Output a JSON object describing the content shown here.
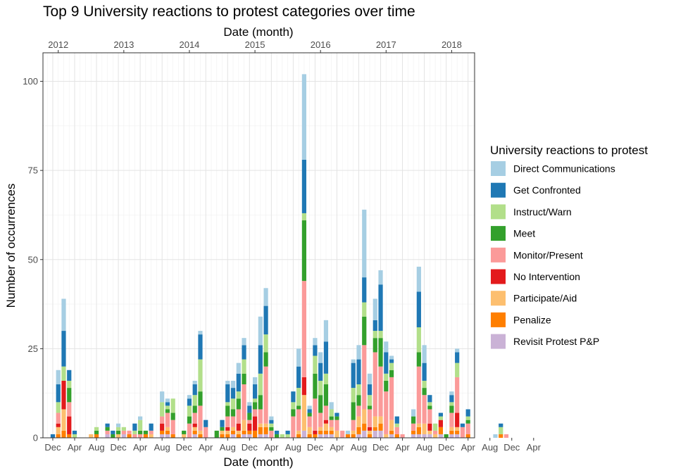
{
  "chart_data": {
    "type": "bar",
    "stacked": true,
    "title": "Top 9  University reactions to protest categories over time",
    "xlabel": "Date (month)",
    "xlabel_top": "Date (month)",
    "ylabel": "Number of occurrences",
    "ylim": [
      0,
      108
    ],
    "y_ticks": [
      0,
      25,
      50,
      75,
      100
    ],
    "x_ticks_bottom": [
      "Dec",
      "Apr",
      "Aug",
      "Dec",
      "Apr",
      "Aug",
      "Dec",
      "Apr",
      "Aug",
      "Dec",
      "Apr",
      "Aug",
      "Dec",
      "Apr",
      "Aug",
      "Dec",
      "Apr",
      "Aug",
      "Dec",
      "Apr",
      "Aug",
      "Dec",
      "Apr"
    ],
    "x_ticks_top": [
      "2012",
      "2013",
      "2014",
      "2015",
      "2016",
      "2017",
      "2018"
    ],
    "grid": true,
    "legend": {
      "title": "University reactions to protest",
      "position": "right",
      "items": [
        {
          "name": "Direct Communications",
          "color": "#A6CEE3"
        },
        {
          "name": "Get Confronted",
          "color": "#1F78B4"
        },
        {
          "name": "Instruct/Warn",
          "color": "#B2DF8A"
        },
        {
          "name": "Meet",
          "color": "#33A02C"
        },
        {
          "name": "Monitor/Present",
          "color": "#FB9A99"
        },
        {
          "name": "No Intervention",
          "color": "#E31A1C"
        },
        {
          "name": "Participate/Aid",
          "color": "#FDBF6F"
        },
        {
          "name": "Penalize",
          "color": "#FF7F00"
        },
        {
          "name": "Revisit Protest P&P",
          "color": "#CAB2D6"
        }
      ]
    },
    "stack_order_bottom_to_top": [
      "Revisit Protest P&P",
      "Penalize",
      "Participate/Aid",
      "No Intervention",
      "Monitor/Present",
      "Meet",
      "Instruct/Warn",
      "Get Confronted",
      "Direct Communications"
    ],
    "x_start": "2011-12",
    "x_unit": "month",
    "x_domain_months": [
      -1.8,
      77.2
    ],
    "bars": [
      {
        "month": "2011-12",
        "values": [
          0,
          0,
          0,
          0,
          0,
          0,
          0,
          1,
          0
        ]
      },
      {
        "month": "2012-01",
        "values": [
          0,
          1,
          2,
          1,
          3,
          0,
          3,
          5,
          4
        ]
      },
      {
        "month": "2012-02",
        "values": [
          0,
          2,
          6,
          8,
          0,
          0,
          4,
          10,
          9
        ]
      },
      {
        "month": "2012-03",
        "values": [
          0,
          1,
          0,
          5,
          4,
          4,
          2,
          3,
          0
        ]
      },
      {
        "month": "2012-04",
        "values": [
          0,
          0,
          0,
          0,
          0,
          0,
          1,
          1,
          0
        ]
      },
      {
        "month": "2012-07",
        "values": [
          0,
          0,
          1,
          0,
          0,
          0,
          0,
          0,
          0
        ]
      },
      {
        "month": "2012-08",
        "values": [
          0,
          1,
          0,
          0,
          0,
          1,
          1,
          0,
          0
        ]
      },
      {
        "month": "2012-10",
        "values": [
          1,
          0,
          0,
          0,
          1,
          1,
          0,
          1,
          0
        ]
      },
      {
        "month": "2012-11",
        "values": [
          0,
          0,
          0,
          0,
          0,
          1,
          0,
          1,
          0
        ]
      },
      {
        "month": "2012-12",
        "values": [
          0,
          0,
          1,
          0,
          0,
          1,
          1,
          0,
          1
        ]
      },
      {
        "month": "2013-01",
        "values": [
          1,
          0,
          0,
          0,
          1,
          0,
          1,
          0,
          0
        ]
      },
      {
        "month": "2013-02",
        "values": [
          0,
          1,
          0,
          0,
          1,
          0,
          0,
          0,
          0
        ]
      },
      {
        "month": "2013-03",
        "values": [
          0,
          0,
          0,
          0,
          1,
          0,
          1,
          2,
          0
        ]
      },
      {
        "month": "2013-04",
        "values": [
          0,
          0,
          0,
          0,
          1,
          1,
          3,
          0,
          1
        ]
      },
      {
        "month": "2013-05",
        "values": [
          0,
          1,
          0,
          0,
          0,
          1,
          0,
          0,
          0
        ]
      },
      {
        "month": "2013-06",
        "values": [
          0,
          0,
          1,
          0,
          1,
          0,
          0,
          2,
          0
        ]
      },
      {
        "month": "2013-08",
        "values": [
          1,
          1,
          0,
          2,
          2,
          0,
          4,
          0,
          3
        ]
      },
      {
        "month": "2013-09",
        "values": [
          1,
          1,
          1,
          0,
          4,
          1,
          1,
          1,
          1
        ]
      },
      {
        "month": "2013-10",
        "values": [
          0,
          1,
          0,
          0,
          4,
          2,
          4,
          0,
          0
        ]
      },
      {
        "month": "2013-12",
        "values": [
          0,
          0,
          1,
          0,
          0,
          1,
          0,
          0,
          0
        ]
      },
      {
        "month": "2014-01",
        "values": [
          0,
          0,
          0,
          0,
          4,
          2,
          3,
          2,
          1
        ]
      },
      {
        "month": "2014-02",
        "values": [
          1,
          1,
          1,
          1,
          3,
          2,
          3,
          3,
          1
        ]
      },
      {
        "month": "2014-03",
        "values": [
          0,
          1,
          1,
          0,
          7,
          4,
          9,
          7,
          1
        ]
      },
      {
        "month": "2014-04",
        "values": [
          0,
          0,
          0,
          0,
          3,
          0,
          0,
          2,
          0
        ]
      },
      {
        "month": "2014-06",
        "values": [
          0,
          0,
          0,
          0,
          0,
          2,
          0,
          0,
          0
        ]
      },
      {
        "month": "2014-07",
        "values": [
          0,
          1,
          1,
          0,
          0,
          1,
          0,
          2,
          0
        ]
      },
      {
        "month": "2014-08",
        "values": [
          0,
          1,
          1,
          1,
          3,
          3,
          1,
          5,
          1
        ]
      },
      {
        "month": "2014-09",
        "values": [
          1,
          1,
          1,
          0,
          3,
          2,
          3,
          3,
          2
        ]
      },
      {
        "month": "2014-10",
        "values": [
          0,
          1,
          1,
          2,
          4,
          3,
          2,
          5,
          3
        ]
      },
      {
        "month": "2014-11",
        "values": [
          1,
          1,
          3,
          0,
          10,
          3,
          4,
          4,
          2
        ]
      },
      {
        "month": "2014-12",
        "values": [
          1,
          1,
          0,
          2,
          1,
          2,
          0,
          2,
          1
        ]
      },
      {
        "month": "2015-01",
        "values": [
          0,
          2,
          0,
          4,
          2,
          2,
          1,
          4,
          2
        ]
      },
      {
        "month": "2015-02",
        "values": [
          1,
          2,
          1,
          0,
          4,
          4,
          6,
          8,
          8
        ]
      },
      {
        "month": "2015-03",
        "values": [
          1,
          2,
          1,
          0,
          16,
          4,
          5,
          8,
          5
        ]
      },
      {
        "month": "2015-04",
        "values": [
          0,
          0,
          0,
          0,
          2,
          1,
          1,
          1,
          1
        ]
      },
      {
        "month": "2015-05",
        "values": [
          0,
          0,
          0,
          0,
          0,
          1,
          0,
          1,
          0
        ]
      },
      {
        "month": "2015-06",
        "values": [
          0,
          0,
          0,
          0,
          0,
          0,
          1,
          0,
          0
        ]
      },
      {
        "month": "2015-07",
        "values": [
          0,
          0,
          0,
          0,
          0,
          0,
          1,
          1,
          0
        ]
      },
      {
        "month": "2015-08",
        "values": [
          0,
          0,
          0,
          0,
          6,
          2,
          2,
          3,
          0
        ]
      },
      {
        "month": "2015-09",
        "values": [
          0,
          1,
          1,
          0,
          6,
          1,
          5,
          6,
          5
        ]
      },
      {
        "month": "2015-10",
        "values": [
          2,
          0,
          10,
          5,
          27,
          17,
          2,
          15,
          24
        ]
      },
      {
        "month": "2015-11",
        "values": [
          0,
          1,
          2,
          0,
          3,
          1,
          0,
          1,
          1
        ]
      },
      {
        "month": "2015-12",
        "values": [
          0,
          1,
          0,
          1,
          9,
          7,
          5,
          3,
          2
        ]
      },
      {
        "month": "2016-01",
        "values": [
          1,
          1,
          1,
          0,
          4,
          5,
          4,
          5,
          3
        ]
      },
      {
        "month": "2016-02",
        "values": [
          1,
          1,
          2,
          1,
          4,
          6,
          3,
          9,
          6
        ]
      },
      {
        "month": "2016-03",
        "values": [
          1,
          1,
          1,
          0,
          2,
          1,
          2,
          0,
          2
        ]
      },
      {
        "month": "2016-04",
        "values": [
          0,
          0,
          2,
          0,
          3,
          1,
          0,
          1,
          0
        ]
      },
      {
        "month": "2016-05",
        "values": [
          0,
          0,
          0,
          0,
          2,
          0,
          0,
          0,
          0
        ]
      },
      {
        "month": "2016-06",
        "values": [
          0,
          1,
          0,
          0,
          0,
          0,
          0,
          0,
          1
        ]
      },
      {
        "month": "2016-07",
        "values": [
          0,
          1,
          1,
          0,
          3,
          5,
          4,
          7,
          1
        ]
      },
      {
        "month": "2016-08",
        "values": [
          1,
          2,
          3,
          0,
          3,
          3,
          3,
          7,
          4
        ]
      },
      {
        "month": "2016-09",
        "values": [
          2,
          2,
          4,
          0,
          18,
          8,
          4,
          7,
          19
        ]
      },
      {
        "month": "2016-10",
        "values": [
          0,
          1,
          1,
          1,
          5,
          1,
          3,
          3,
          3
        ]
      },
      {
        "month": "2016-11",
        "values": [
          2,
          1,
          3,
          0,
          18,
          4,
          2,
          3,
          6
        ]
      },
      {
        "month": "2016-12",
        "values": [
          2,
          2,
          2,
          0,
          14,
          8,
          2,
          13,
          4
        ]
      },
      {
        "month": "2017-01",
        "values": [
          0,
          0,
          1,
          0,
          12,
          3,
          2,
          6,
          3
        ]
      },
      {
        "month": "2017-02",
        "values": [
          1,
          1,
          3,
          0,
          12,
          2,
          2,
          1,
          1
        ]
      },
      {
        "month": "2017-03",
        "values": [
          0,
          1,
          0,
          0,
          2,
          0,
          1,
          2,
          0
        ]
      },
      {
        "month": "2017-04",
        "values": [
          0,
          0,
          0,
          0,
          1,
          0,
          0,
          0,
          0
        ]
      },
      {
        "month": "2017-05",
        "values": [
          0,
          0,
          0,
          0,
          0,
          0,
          0,
          0,
          0
        ]
      },
      {
        "month": "2017-06",
        "values": [
          1,
          1,
          0,
          0,
          2,
          2,
          0,
          0,
          2
        ]
      },
      {
        "month": "2017-07",
        "values": [
          1,
          2,
          1,
          0,
          16,
          4,
          7,
          10,
          7
        ]
      },
      {
        "month": "2017-08",
        "values": [
          1,
          0,
          3,
          0,
          8,
          2,
          2,
          5,
          5
        ]
      },
      {
        "month": "2017-09",
        "values": [
          1,
          0,
          1,
          2,
          4,
          1,
          1,
          2,
          0
        ]
      },
      {
        "month": "2017-10",
        "values": [
          0,
          0,
          1,
          0,
          1,
          0,
          2,
          0,
          0
        ]
      },
      {
        "month": "2017-11",
        "values": [
          1,
          2,
          0,
          2,
          0,
          0,
          1,
          1,
          0
        ]
      },
      {
        "month": "2017-12",
        "values": [
          0,
          0,
          0,
          0,
          0,
          1,
          0,
          0,
          0
        ]
      },
      {
        "month": "2018-01",
        "values": [
          1,
          1,
          1,
          0,
          4,
          2,
          1,
          2,
          1
        ]
      },
      {
        "month": "2018-02",
        "values": [
          1,
          1,
          1,
          4,
          10,
          0,
          4,
          3,
          1
        ]
      },
      {
        "month": "2018-03",
        "values": [
          0,
          0,
          0,
          0,
          3,
          0,
          0,
          1,
          0
        ]
      },
      {
        "month": "2018-04",
        "values": [
          0,
          1,
          0,
          0,
          3,
          1,
          1,
          2,
          0
        ]
      },
      {
        "month": "2018-09",
        "values": [
          0,
          0,
          0,
          0,
          0,
          0,
          0,
          0,
          1
        ]
      },
      {
        "month": "2018-10",
        "values": [
          0,
          1,
          0,
          0,
          0,
          0,
          2,
          1,
          0
        ]
      },
      {
        "month": "2018-11",
        "values": [
          0,
          0,
          0,
          0,
          1,
          0,
          0,
          0,
          0
        ]
      }
    ]
  }
}
